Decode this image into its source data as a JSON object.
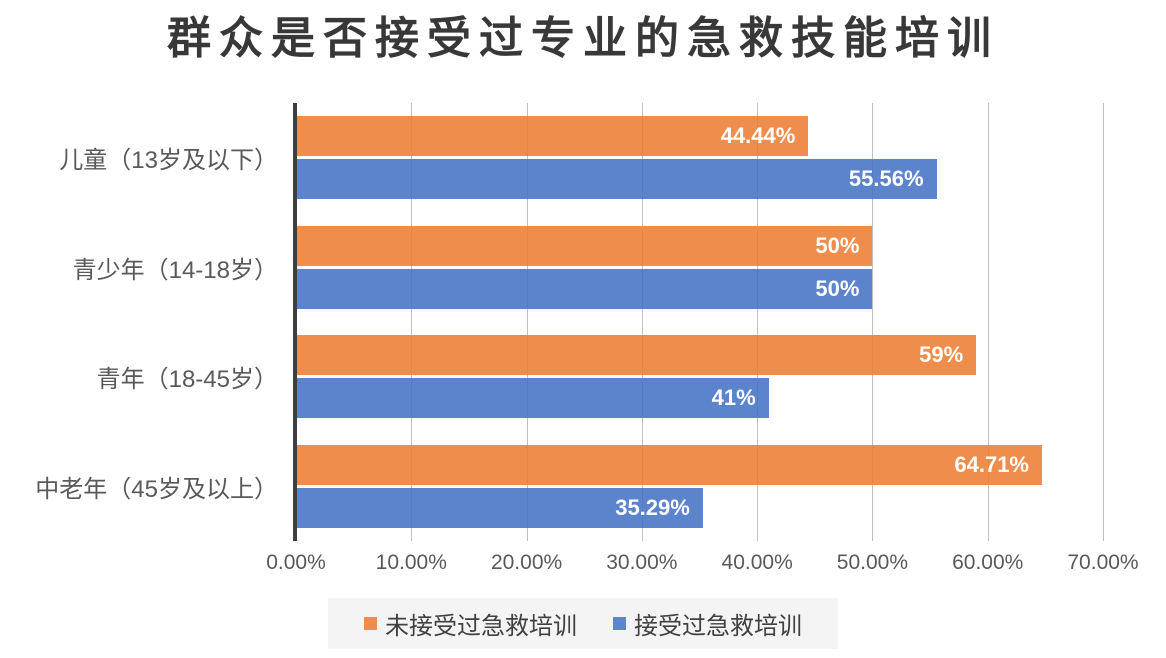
{
  "title": "群众是否接受过专业的急救技能培训",
  "chart_data": {
    "type": "bar",
    "orientation": "horizontal",
    "title": "群众是否接受过专业的急救技能培训",
    "categories": [
      "儿童（13岁及以下）",
      "青少年（14-18岁）",
      "青年（18-45岁）",
      "中老年（45岁及以上）"
    ],
    "series": [
      {
        "name": "未接受过急救培训",
        "color": "#ED7D31",
        "values": [
          44.44,
          50,
          59,
          64.71
        ],
        "labels": [
          "44.44%",
          "50%",
          "59%",
          "64.71%"
        ]
      },
      {
        "name": "接受过急救培训",
        "color": "#4472C4",
        "values": [
          55.56,
          50,
          41,
          35.29
        ],
        "labels": [
          "55.56%",
          "50%",
          "41%",
          "35.29%"
        ]
      }
    ],
    "xlim": [
      0,
      70
    ],
    "x_tick_values": [
      0,
      10,
      20,
      30,
      40,
      50,
      60,
      70
    ],
    "x_tick_labels": [
      "0.00%",
      "10.00%",
      "20.00%",
      "30.00%",
      "40.00%",
      "50.00%",
      "60.00%",
      "70.00%"
    ],
    "grid": "vertical-gridlines",
    "legend_position": "bottom",
    "data_labels": "inside-end-white"
  },
  "colors": {
    "bar_fill_no_training": "rgba(237,125,49,0.87)",
    "bar_fill_training": "rgba(68,114,196,0.87)",
    "swatch_no_training": "#ED8C4F",
    "swatch_training": "#5C86CB",
    "gridline": "#C0C0C0",
    "axis_line": "#3F3F3F",
    "tick_text": "#595959",
    "title_text": "#383838",
    "data_label_text": "#FFFFFF",
    "legend_bg": "#F4F4F4",
    "legend_text": "#404040"
  }
}
